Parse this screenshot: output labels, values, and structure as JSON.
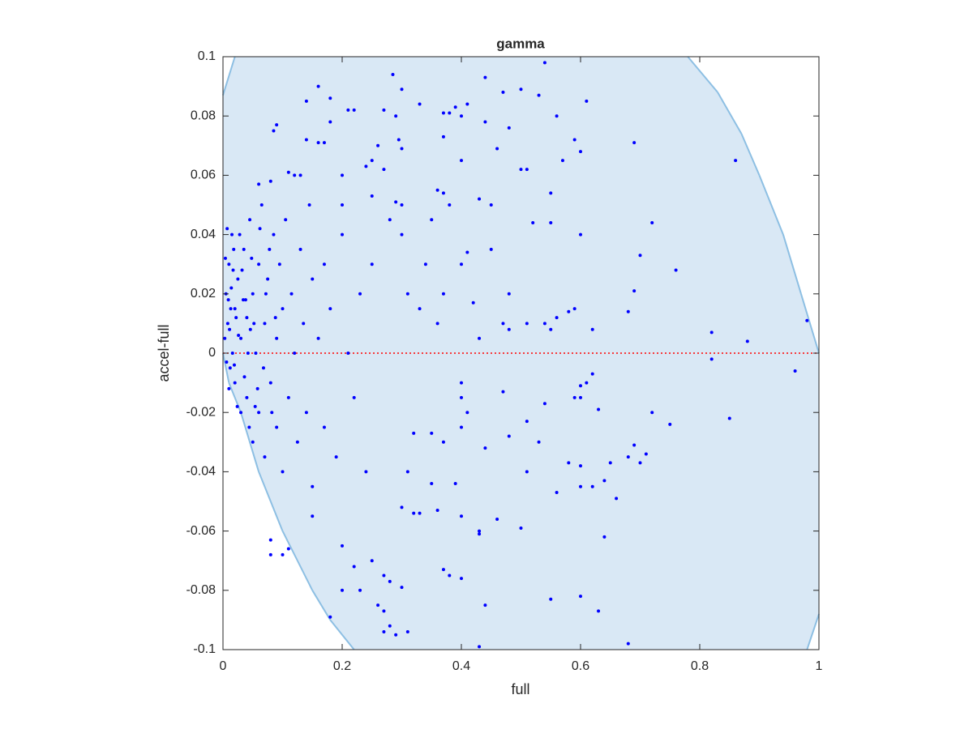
{
  "chart_data": {
    "type": "scatter",
    "title": "gamma",
    "x_label": "full",
    "y_label": "accel-full",
    "xlim": [
      0,
      1
    ],
    "ylim": [
      -0.1,
      0.1
    ],
    "xticks": [
      0,
      0.2,
      0.4,
      0.6,
      0.8,
      1
    ],
    "yticks": [
      -0.1,
      -0.08,
      -0.06,
      -0.04,
      -0.02,
      0,
      0.02,
      0.04,
      0.06,
      0.08,
      0.1
    ],
    "point_color": "#0000ff",
    "region": {
      "color": "#d9e8f5",
      "edge_color": "#8dbfe3",
      "points": [
        [
          0,
          0.087
        ],
        [
          0.02,
          0.1
        ],
        [
          0.78,
          0.1
        ],
        [
          0.83,
          0.088
        ],
        [
          0.87,
          0.074
        ],
        [
          0.9,
          0.06
        ],
        [
          0.94,
          0.04
        ],
        [
          0.97,
          0.02
        ],
        [
          1,
          0
        ],
        [
          1,
          -0.088
        ],
        [
          0.98,
          -0.1
        ],
        [
          0.22,
          -0.1
        ],
        [
          0.18,
          -0.09
        ],
        [
          0.15,
          -0.08
        ],
        [
          0.1,
          -0.06
        ],
        [
          0.06,
          -0.04
        ],
        [
          0.03,
          -0.02
        ],
        [
          0.01,
          -0.01
        ],
        [
          0,
          0
        ]
      ]
    },
    "reference_line": {
      "y": 0,
      "color": "#ff0000"
    },
    "points": [
      [
        0.54,
        0.098
      ],
      [
        0.285,
        0.094
      ],
      [
        0.44,
        0.093
      ],
      [
        0.3,
        0.089
      ],
      [
        0.16,
        0.09
      ],
      [
        0.47,
        0.088
      ],
      [
        0.5,
        0.089
      ],
      [
        0.53,
        0.087
      ],
      [
        0.14,
        0.085
      ],
      [
        0.18,
        0.086
      ],
      [
        0.61,
        0.085
      ],
      [
        0.21,
        0.082
      ],
      [
        0.22,
        0.082
      ],
      [
        0.27,
        0.082
      ],
      [
        0.29,
        0.08
      ],
      [
        0.33,
        0.084
      ],
      [
        0.37,
        0.081
      ],
      [
        0.38,
        0.081
      ],
      [
        0.39,
        0.083
      ],
      [
        0.4,
        0.08
      ],
      [
        0.41,
        0.084
      ],
      [
        0.09,
        0.077
      ],
      [
        0.085,
        0.075
      ],
      [
        0.18,
        0.078
      ],
      [
        0.44,
        0.078
      ],
      [
        0.48,
        0.076
      ],
      [
        0.56,
        0.08
      ],
      [
        0.59,
        0.072
      ],
      [
        0.69,
        0.071
      ],
      [
        0.14,
        0.072
      ],
      [
        0.16,
        0.071
      ],
      [
        0.17,
        0.071
      ],
      [
        0.26,
        0.07
      ],
      [
        0.295,
        0.072
      ],
      [
        0.3,
        0.069
      ],
      [
        0.37,
        0.073
      ],
      [
        0.4,
        0.065
      ],
      [
        0.25,
        0.065
      ],
      [
        0.46,
        0.069
      ],
      [
        0.6,
        0.068
      ],
      [
        0.57,
        0.065
      ],
      [
        0.86,
        0.065
      ],
      [
        0.5,
        0.062
      ],
      [
        0.51,
        0.062
      ],
      [
        0.2,
        0.06
      ],
      [
        0.24,
        0.063
      ],
      [
        0.27,
        0.062
      ],
      [
        0.11,
        0.061
      ],
      [
        0.12,
        0.06
      ],
      [
        0.13,
        0.06
      ],
      [
        0.08,
        0.058
      ],
      [
        0.06,
        0.057
      ],
      [
        0.36,
        0.055
      ],
      [
        0.37,
        0.054
      ],
      [
        0.43,
        0.052
      ],
      [
        0.55,
        0.054
      ],
      [
        0.45,
        0.05
      ],
      [
        0.3,
        0.05
      ],
      [
        0.29,
        0.051
      ],
      [
        0.25,
        0.053
      ],
      [
        0.2,
        0.05
      ],
      [
        0.35,
        0.045
      ],
      [
        0.38,
        0.05
      ],
      [
        0.52,
        0.044
      ],
      [
        0.55,
        0.044
      ],
      [
        0.6,
        0.04
      ],
      [
        0.72,
        0.044
      ],
      [
        0.45,
        0.035
      ],
      [
        0.41,
        0.034
      ],
      [
        0.7,
        0.033
      ],
      [
        0.76,
        0.028
      ],
      [
        0.34,
        0.03
      ],
      [
        0.4,
        0.03
      ],
      [
        0.3,
        0.04
      ],
      [
        0.28,
        0.045
      ],
      [
        0.69,
        0.021
      ],
      [
        0.68,
        0.014
      ],
      [
        0.58,
        0.014
      ],
      [
        0.56,
        0.012
      ],
      [
        0.51,
        0.01
      ],
      [
        0.54,
        0.01
      ],
      [
        0.55,
        0.008
      ],
      [
        0.59,
        0.015
      ],
      [
        0.62,
        0.008
      ],
      [
        0.98,
        0.011
      ],
      [
        0.82,
        0.007
      ],
      [
        0.88,
        0.004
      ],
      [
        0.47,
        0.01
      ],
      [
        0.48,
        0.008
      ],
      [
        0.43,
        0.005
      ],
      [
        0.37,
        0.02
      ],
      [
        0.36,
        0.01
      ],
      [
        0.33,
        0.015
      ],
      [
        0.31,
        0.02
      ],
      [
        0.42,
        0.017
      ],
      [
        0.48,
        0.02
      ],
      [
        0.82,
        -0.002
      ],
      [
        0.96,
        -0.006
      ],
      [
        0.4,
        -0.01
      ],
      [
        0.4,
        -0.015
      ],
      [
        0.41,
        -0.02
      ],
      [
        0.4,
        -0.025
      ],
      [
        0.62,
        -0.007
      ],
      [
        0.6,
        -0.011
      ],
      [
        0.6,
        -0.015
      ],
      [
        0.61,
        -0.01
      ],
      [
        0.59,
        -0.015
      ],
      [
        0.63,
        -0.019
      ],
      [
        0.72,
        -0.02
      ],
      [
        0.75,
        -0.024
      ],
      [
        0.85,
        -0.022
      ],
      [
        0.51,
        -0.023
      ],
      [
        0.54,
        -0.017
      ],
      [
        0.47,
        -0.013
      ],
      [
        0.35,
        -0.027
      ],
      [
        0.37,
        -0.03
      ],
      [
        0.32,
        -0.027
      ],
      [
        0.48,
        -0.028
      ],
      [
        0.44,
        -0.032
      ],
      [
        0.53,
        -0.03
      ],
      [
        0.58,
        -0.037
      ],
      [
        0.6,
        -0.038
      ],
      [
        0.65,
        -0.037
      ],
      [
        0.68,
        -0.035
      ],
      [
        0.69,
        -0.031
      ],
      [
        0.7,
        -0.037
      ],
      [
        0.71,
        -0.034
      ],
      [
        0.51,
        -0.04
      ],
      [
        0.6,
        -0.045
      ],
      [
        0.62,
        -0.045
      ],
      [
        0.64,
        -0.043
      ],
      [
        0.66,
        -0.049
      ],
      [
        0.56,
        -0.047
      ],
      [
        0.39,
        -0.044
      ],
      [
        0.35,
        -0.044
      ],
      [
        0.31,
        -0.04
      ],
      [
        0.36,
        -0.053
      ],
      [
        0.4,
        -0.055
      ],
      [
        0.3,
        -0.052
      ],
      [
        0.32,
        -0.054
      ],
      [
        0.33,
        -0.054
      ],
      [
        0.46,
        -0.056
      ],
      [
        0.5,
        -0.059
      ],
      [
        0.43,
        -0.06
      ],
      [
        0.43,
        -0.061
      ],
      [
        0.64,
        -0.062
      ],
      [
        0.37,
        -0.073
      ],
      [
        0.4,
        -0.076
      ],
      [
        0.38,
        -0.075
      ],
      [
        0.27,
        -0.075
      ],
      [
        0.28,
        -0.077
      ],
      [
        0.3,
        -0.079
      ],
      [
        0.55,
        -0.083
      ],
      [
        0.6,
        -0.082
      ],
      [
        0.44,
        -0.085
      ],
      [
        0.63,
        -0.087
      ],
      [
        0.26,
        -0.085
      ],
      [
        0.27,
        -0.087
      ],
      [
        0.28,
        -0.092
      ],
      [
        0.27,
        -0.094
      ],
      [
        0.31,
        -0.094
      ],
      [
        0.29,
        -0.095
      ],
      [
        0.68,
        -0.098
      ],
      [
        0.43,
        -0.099
      ],
      [
        0.08,
        -0.063
      ],
      [
        0.08,
        -0.068
      ],
      [
        0.1,
        -0.068
      ],
      [
        0.11,
        -0.066
      ],
      [
        0.18,
        -0.089
      ],
      [
        0.15,
        -0.055
      ],
      [
        0.2,
        -0.065
      ],
      [
        0.22,
        -0.072
      ],
      [
        0.2,
        -0.08
      ],
      [
        0.23,
        -0.08
      ],
      [
        0.25,
        -0.07
      ],
      [
        0.005,
        0.02
      ],
      [
        0.008,
        0.01
      ],
      [
        0.01,
        0.03
      ],
      [
        0.012,
        -0.005
      ],
      [
        0.015,
        0.04
      ],
      [
        0.02,
        0.015
      ],
      [
        0.02,
        -0.01
      ],
      [
        0.025,
        0.025
      ],
      [
        0.03,
        0.005
      ],
      [
        0.03,
        -0.02
      ],
      [
        0.035,
        0.035
      ],
      [
        0.04,
        0.012
      ],
      [
        0.04,
        -0.015
      ],
      [
        0.045,
        0.045
      ],
      [
        0.05,
        0.02
      ],
      [
        0.05,
        -0.03
      ],
      [
        0.055,
        0.0
      ],
      [
        0.06,
        0.03
      ],
      [
        0.06,
        -0.02
      ],
      [
        0.065,
        0.05
      ],
      [
        0.07,
        0.01
      ],
      [
        0.07,
        -0.035
      ],
      [
        0.075,
        0.025
      ],
      [
        0.08,
        -0.01
      ],
      [
        0.085,
        0.04
      ],
      [
        0.09,
        0.005
      ],
      [
        0.09,
        -0.025
      ],
      [
        0.095,
        0.03
      ],
      [
        0.1,
        0.015
      ],
      [
        0.1,
        -0.04
      ],
      [
        0.105,
        0.045
      ],
      [
        0.11,
        -0.015
      ],
      [
        0.115,
        0.02
      ],
      [
        0.12,
        0.0
      ],
      [
        0.125,
        -0.03
      ],
      [
        0.13,
        0.035
      ],
      [
        0.135,
        0.01
      ],
      [
        0.14,
        -0.02
      ],
      [
        0.145,
        0.05
      ],
      [
        0.15,
        0.025
      ],
      [
        0.15,
        -0.045
      ],
      [
        0.16,
        0.005
      ],
      [
        0.17,
        0.03
      ],
      [
        0.17,
        -0.025
      ],
      [
        0.18,
        0.015
      ],
      [
        0.19,
        -0.035
      ],
      [
        0.2,
        0.04
      ],
      [
        0.21,
        0.0
      ],
      [
        0.22,
        -0.015
      ],
      [
        0.23,
        0.02
      ],
      [
        0.24,
        -0.04
      ],
      [
        0.25,
        0.03
      ],
      [
        0.003,
        0.005
      ],
      [
        0.006,
        -0.003
      ],
      [
        0.009,
        0.018
      ],
      [
        0.011,
        0.008
      ],
      [
        0.014,
        0.022
      ],
      [
        0.016,
        0.0
      ],
      [
        0.018,
        0.035
      ],
      [
        0.022,
        0.012
      ],
      [
        0.024,
        -0.018
      ],
      [
        0.028,
        0.04
      ],
      [
        0.032,
        0.028
      ],
      [
        0.036,
        -0.008
      ],
      [
        0.038,
        0.018
      ],
      [
        0.042,
        0.0
      ],
      [
        0.044,
        -0.025
      ],
      [
        0.048,
        0.032
      ],
      [
        0.052,
        0.01
      ],
      [
        0.058,
        -0.012
      ],
      [
        0.062,
        0.042
      ],
      [
        0.068,
        -0.005
      ],
      [
        0.072,
        0.02
      ],
      [
        0.078,
        0.035
      ],
      [
        0.082,
        -0.02
      ],
      [
        0.088,
        0.012
      ],
      [
        0.004,
        0.032
      ],
      [
        0.007,
        0.042
      ],
      [
        0.01,
        -0.012
      ],
      [
        0.013,
        0.015
      ],
      [
        0.017,
        0.028
      ],
      [
        0.019,
        -0.004
      ],
      [
        0.026,
        0.006
      ],
      [
        0.034,
        0.018
      ],
      [
        0.046,
        0.008
      ],
      [
        0.054,
        -0.018
      ]
    ]
  }
}
